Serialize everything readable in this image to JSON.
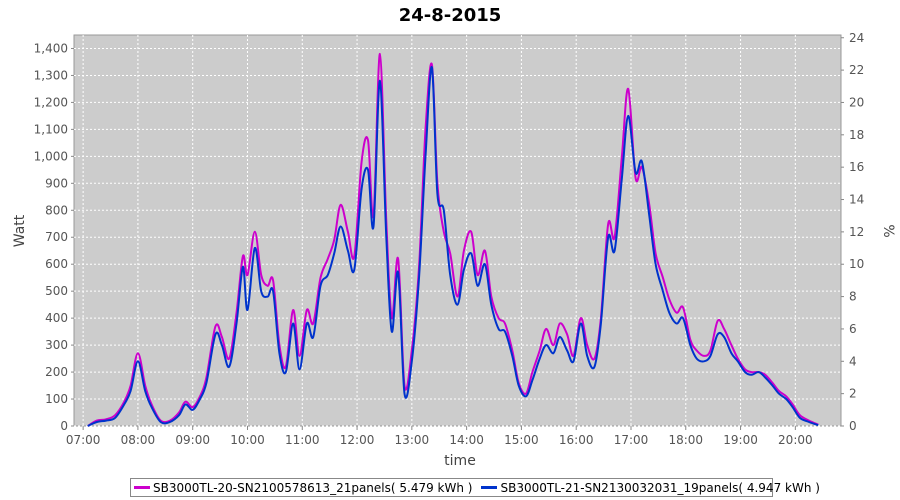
{
  "chart_data": {
    "type": "line",
    "title": "24-8-2015",
    "xlabel": "time",
    "ylabel": "Watt",
    "y2label": "%",
    "xlim": [
      "06:50",
      "20:50"
    ],
    "ylim": [
      0,
      1450
    ],
    "y2lim": [
      0,
      24.17
    ],
    "y_ticks": [
      0,
      100,
      200,
      300,
      400,
      500,
      600,
      700,
      800,
      900,
      1000,
      1100,
      1200,
      1300,
      1400
    ],
    "y_tick_labels": [
      "0",
      "100",
      "200",
      "300",
      "400",
      "500",
      "600",
      "700",
      "800",
      "900",
      "1,000",
      "1,100",
      "1,200",
      "1,300",
      "1,400"
    ],
    "y2_ticks": [
      0,
      2,
      4,
      6,
      8,
      10,
      12,
      14,
      16,
      18,
      20,
      22,
      24
    ],
    "x_ticks": [
      "07:00",
      "08:00",
      "09:00",
      "10:00",
      "11:00",
      "12:00",
      "13:00",
      "14:00",
      "15:00",
      "16:00",
      "17:00",
      "18:00",
      "19:00",
      "20:00"
    ],
    "grid": true,
    "background": "#cccccc",
    "legend_position": "bottom",
    "series": [
      {
        "name": "SB3000TL-20-SN2100578613_21panels( 5.479 kWh )",
        "color": "#cc00cc",
        "points": [
          [
            "07:05",
            0
          ],
          [
            "07:15",
            20
          ],
          [
            "07:25",
            25
          ],
          [
            "07:35",
            40
          ],
          [
            "07:45",
            90
          ],
          [
            "07:52",
            150
          ],
          [
            "08:00",
            270
          ],
          [
            "08:08",
            150
          ],
          [
            "08:15",
            80
          ],
          [
            "08:25",
            20
          ],
          [
            "08:35",
            20
          ],
          [
            "08:45",
            50
          ],
          [
            "08:52",
            90
          ],
          [
            "09:00",
            70
          ],
          [
            "09:08",
            110
          ],
          [
            "09:15",
            180
          ],
          [
            "09:25",
            370
          ],
          [
            "09:32",
            330
          ],
          [
            "09:40",
            250
          ],
          [
            "09:48",
            420
          ],
          [
            "09:55",
            630
          ],
          [
            "10:00",
            560
          ],
          [
            "10:08",
            720
          ],
          [
            "10:15",
            560
          ],
          [
            "10:22",
            520
          ],
          [
            "10:28",
            540
          ],
          [
            "10:35",
            300
          ],
          [
            "10:42",
            220
          ],
          [
            "10:50",
            430
          ],
          [
            "10:57",
            260
          ],
          [
            "11:05",
            430
          ],
          [
            "11:12",
            380
          ],
          [
            "11:20",
            550
          ],
          [
            "11:28",
            620
          ],
          [
            "11:35",
            690
          ],
          [
            "11:42",
            820
          ],
          [
            "11:50",
            720
          ],
          [
            "11:57",
            630
          ],
          [
            "12:05",
            980
          ],
          [
            "12:12",
            1060
          ],
          [
            "12:18",
            780
          ],
          [
            "12:25",
            1380
          ],
          [
            "12:32",
            760
          ],
          [
            "12:38",
            400
          ],
          [
            "12:45",
            620
          ],
          [
            "12:52",
            150
          ],
          [
            "13:00",
            280
          ],
          [
            "13:08",
            600
          ],
          [
            "13:15",
            1100
          ],
          [
            "13:22",
            1340
          ],
          [
            "13:28",
            900
          ],
          [
            "13:35",
            720
          ],
          [
            "13:42",
            640
          ],
          [
            "13:50",
            480
          ],
          [
            "13:57",
            650
          ],
          [
            "14:05",
            720
          ],
          [
            "14:12",
            560
          ],
          [
            "14:20",
            650
          ],
          [
            "14:27",
            480
          ],
          [
            "14:35",
            400
          ],
          [
            "14:42",
            380
          ],
          [
            "14:50",
            280
          ],
          [
            "14:57",
            160
          ],
          [
            "15:05",
            120
          ],
          [
            "15:12",
            200
          ],
          [
            "15:20",
            280
          ],
          [
            "15:27",
            360
          ],
          [
            "15:35",
            300
          ],
          [
            "15:42",
            380
          ],
          [
            "15:50",
            340
          ],
          [
            "15:57",
            260
          ],
          [
            "16:05",
            400
          ],
          [
            "16:12",
            300
          ],
          [
            "16:20",
            250
          ],
          [
            "16:27",
            400
          ],
          [
            "16:35",
            750
          ],
          [
            "16:42",
            700
          ],
          [
            "16:50",
            1000
          ],
          [
            "16:57",
            1250
          ],
          [
            "17:05",
            920
          ],
          [
            "17:12",
            960
          ],
          [
            "17:20",
            820
          ],
          [
            "17:27",
            640
          ],
          [
            "17:35",
            550
          ],
          [
            "17:42",
            470
          ],
          [
            "17:50",
            420
          ],
          [
            "17:57",
            440
          ],
          [
            "18:05",
            320
          ],
          [
            "18:12",
            280
          ],
          [
            "18:20",
            260
          ],
          [
            "18:27",
            280
          ],
          [
            "18:35",
            390
          ],
          [
            "18:42",
            360
          ],
          [
            "18:50",
            300
          ],
          [
            "18:57",
            250
          ],
          [
            "19:05",
            210
          ],
          [
            "19:12",
            200
          ],
          [
            "19:20",
            200
          ],
          [
            "19:27",
            190
          ],
          [
            "19:35",
            160
          ],
          [
            "19:42",
            130
          ],
          [
            "19:50",
            110
          ],
          [
            "19:57",
            80
          ],
          [
            "20:05",
            40
          ],
          [
            "20:15",
            20
          ],
          [
            "20:25",
            5
          ]
        ]
      },
      {
        "name": "SB3000TL-21-SN2130032031_19panels( 4.947 kWh )",
        "color": "#0033cc",
        "points": [
          [
            "07:05",
            0
          ],
          [
            "07:15",
            15
          ],
          [
            "07:25",
            20
          ],
          [
            "07:35",
            30
          ],
          [
            "07:45",
            80
          ],
          [
            "07:52",
            130
          ],
          [
            "08:00",
            240
          ],
          [
            "08:08",
            130
          ],
          [
            "08:15",
            70
          ],
          [
            "08:25",
            15
          ],
          [
            "08:35",
            15
          ],
          [
            "08:45",
            40
          ],
          [
            "08:52",
            80
          ],
          [
            "09:00",
            60
          ],
          [
            "09:08",
            100
          ],
          [
            "09:15",
            160
          ],
          [
            "09:25",
            340
          ],
          [
            "09:32",
            300
          ],
          [
            "09:40",
            220
          ],
          [
            "09:48",
            380
          ],
          [
            "09:55",
            590
          ],
          [
            "10:00",
            430
          ],
          [
            "10:08",
            660
          ],
          [
            "10:15",
            500
          ],
          [
            "10:22",
            480
          ],
          [
            "10:28",
            500
          ],
          [
            "10:35",
            270
          ],
          [
            "10:42",
            200
          ],
          [
            "10:50",
            380
          ],
          [
            "10:57",
            210
          ],
          [
            "11:05",
            380
          ],
          [
            "11:12",
            330
          ],
          [
            "11:20",
            520
          ],
          [
            "11:28",
            560
          ],
          [
            "11:35",
            640
          ],
          [
            "11:42",
            740
          ],
          [
            "11:50",
            650
          ],
          [
            "11:57",
            580
          ],
          [
            "12:05",
            880
          ],
          [
            "12:12",
            950
          ],
          [
            "12:18",
            740
          ],
          [
            "12:25",
            1280
          ],
          [
            "12:32",
            700
          ],
          [
            "12:38",
            350
          ],
          [
            "12:45",
            570
          ],
          [
            "12:52",
            120
          ],
          [
            "13:00",
            240
          ],
          [
            "13:08",
            560
          ],
          [
            "13:15",
            1000
          ],
          [
            "13:22",
            1330
          ],
          [
            "13:28",
            860
          ],
          [
            "13:35",
            800
          ],
          [
            "13:42",
            560
          ],
          [
            "13:50",
            450
          ],
          [
            "13:57",
            580
          ],
          [
            "14:05",
            640
          ],
          [
            "14:12",
            520
          ],
          [
            "14:20",
            600
          ],
          [
            "14:27",
            450
          ],
          [
            "14:35",
            360
          ],
          [
            "14:42",
            350
          ],
          [
            "14:50",
            260
          ],
          [
            "14:57",
            150
          ],
          [
            "15:05",
            110
          ],
          [
            "15:12",
            170
          ],
          [
            "15:20",
            250
          ],
          [
            "15:27",
            300
          ],
          [
            "15:35",
            270
          ],
          [
            "15:42",
            330
          ],
          [
            "15:50",
            280
          ],
          [
            "15:57",
            240
          ],
          [
            "16:05",
            380
          ],
          [
            "16:12",
            260
          ],
          [
            "16:20",
            220
          ],
          [
            "16:27",
            380
          ],
          [
            "16:35",
            700
          ],
          [
            "16:42",
            650
          ],
          [
            "16:50",
            920
          ],
          [
            "16:57",
            1150
          ],
          [
            "17:05",
            940
          ],
          [
            "17:12",
            980
          ],
          [
            "17:20",
            780
          ],
          [
            "17:27",
            600
          ],
          [
            "17:35",
            500
          ],
          [
            "17:42",
            420
          ],
          [
            "17:50",
            380
          ],
          [
            "17:57",
            400
          ],
          [
            "18:05",
            300
          ],
          [
            "18:12",
            250
          ],
          [
            "18:20",
            240
          ],
          [
            "18:27",
            260
          ],
          [
            "18:35",
            340
          ],
          [
            "18:42",
            330
          ],
          [
            "18:50",
            270
          ],
          [
            "18:57",
            240
          ],
          [
            "19:05",
            200
          ],
          [
            "19:12",
            190
          ],
          [
            "19:20",
            200
          ],
          [
            "19:27",
            180
          ],
          [
            "19:35",
            150
          ],
          [
            "19:42",
            120
          ],
          [
            "19:50",
            100
          ],
          [
            "19:57",
            70
          ],
          [
            "20:05",
            30
          ],
          [
            "20:15",
            15
          ],
          [
            "20:25",
            3
          ]
        ]
      }
    ]
  }
}
